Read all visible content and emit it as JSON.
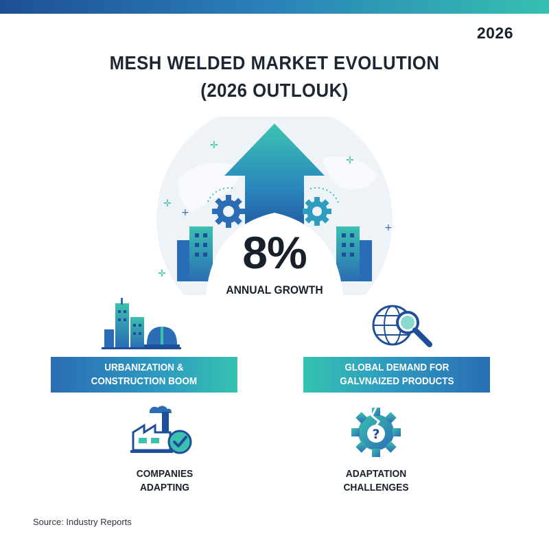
{
  "header": {
    "year": "2026",
    "title_line1": "MESH WELDED MARKET EVOLUTION",
    "title_line2": "(2026 OUTLOUK)"
  },
  "hero": {
    "growth_value": "8%",
    "growth_label": "ANNUAL GROWTH"
  },
  "drivers": [
    {
      "line1": "URBANIZATION &",
      "line2": "CONSTRUCTION BOOM",
      "icon": "city-construction-icon"
    },
    {
      "line1": "GLOBAL DEMAND FOR",
      "line2": "GALVNAIZED PRODUCTS",
      "icon": "globe-magnifier-icon"
    }
  ],
  "outcomes": [
    {
      "line1": "COMPANIES",
      "line2": "ADAPTING",
      "icon": "factory-check-icon"
    },
    {
      "line1": "ADAPTATION",
      "line2": "CHALLENGES",
      "icon": "broken-gear-question-icon"
    }
  ],
  "footer": {
    "source": "Source: Industry Reports"
  },
  "colors": {
    "navy": "#1e4f95",
    "blue": "#2a82b8",
    "teal": "#35c0b0",
    "dark": "#17202b"
  }
}
